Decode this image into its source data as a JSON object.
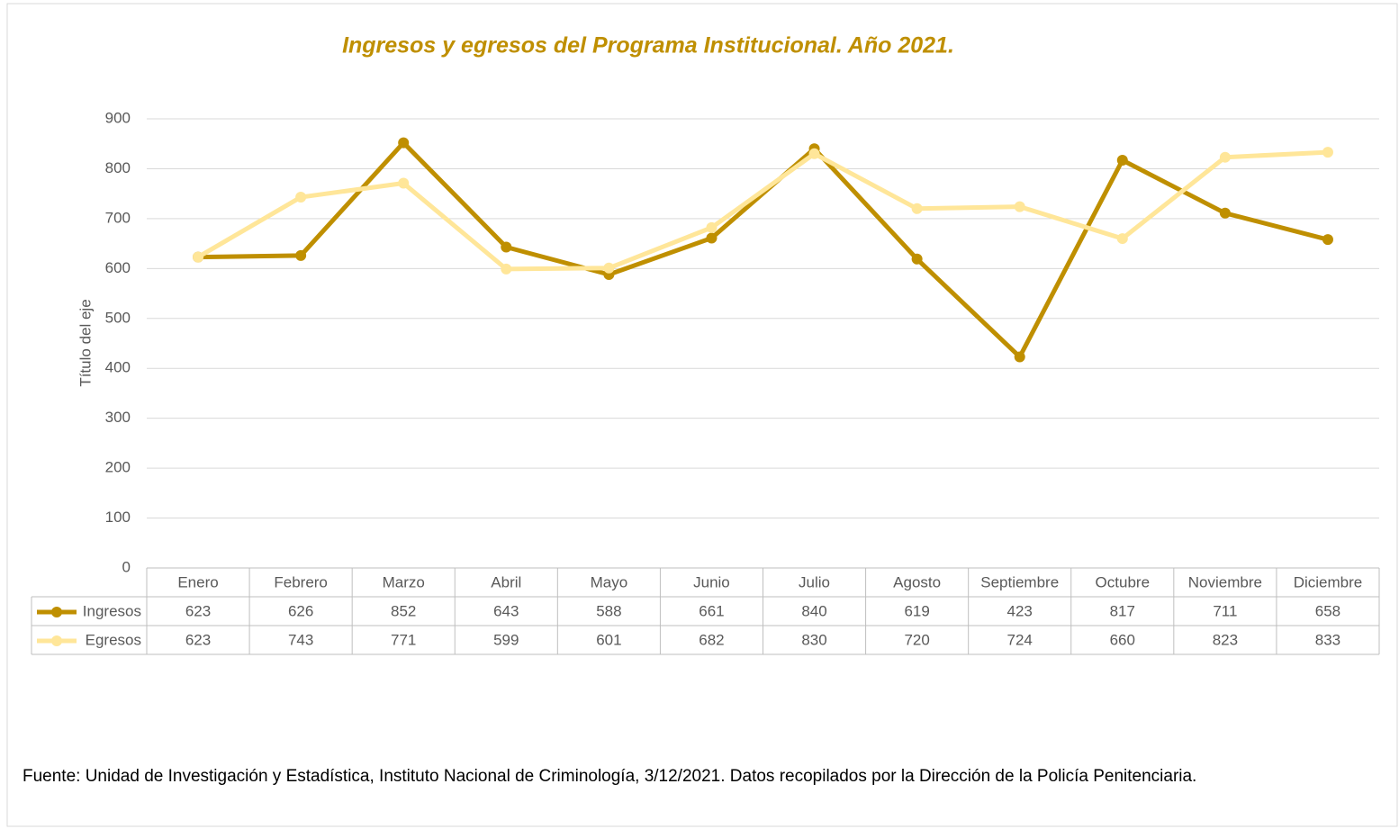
{
  "chart_data": {
    "type": "line",
    "title": "Ingresos y egresos del Programa Institucional.  Año 2021.",
    "y_label": "Título del eje",
    "categories": [
      "Enero",
      "Febrero",
      "Marzo",
      "Abril",
      "Mayo",
      "Junio",
      "Julio",
      "Agosto",
      "Septiembre",
      "Octubre",
      "Noviembre",
      "Diciembre"
    ],
    "series": [
      {
        "name": "Ingresos",
        "color": "#bf8f00",
        "values": [
          623,
          626,
          852,
          643,
          588,
          661,
          840,
          619,
          423,
          817,
          711,
          658
        ]
      },
      {
        "name": "Egresos",
        "color": "#ffe699",
        "values": [
          623,
          743,
          771,
          599,
          601,
          682,
          830,
          720,
          724,
          660,
          823,
          833
        ]
      }
    ],
    "ylim": [
      0,
      900
    ],
    "yticks": [
      0,
      100,
      200,
      300,
      400,
      500,
      600,
      700,
      800,
      900
    ],
    "grid": true,
    "data_table": true,
    "source": "Fuente: Unidad de Investigación y Estadística, Instituto Nacional de Criminología, 3/12/2021. Datos recopilados por la Dirección de la Policía Penitenciaria."
  }
}
